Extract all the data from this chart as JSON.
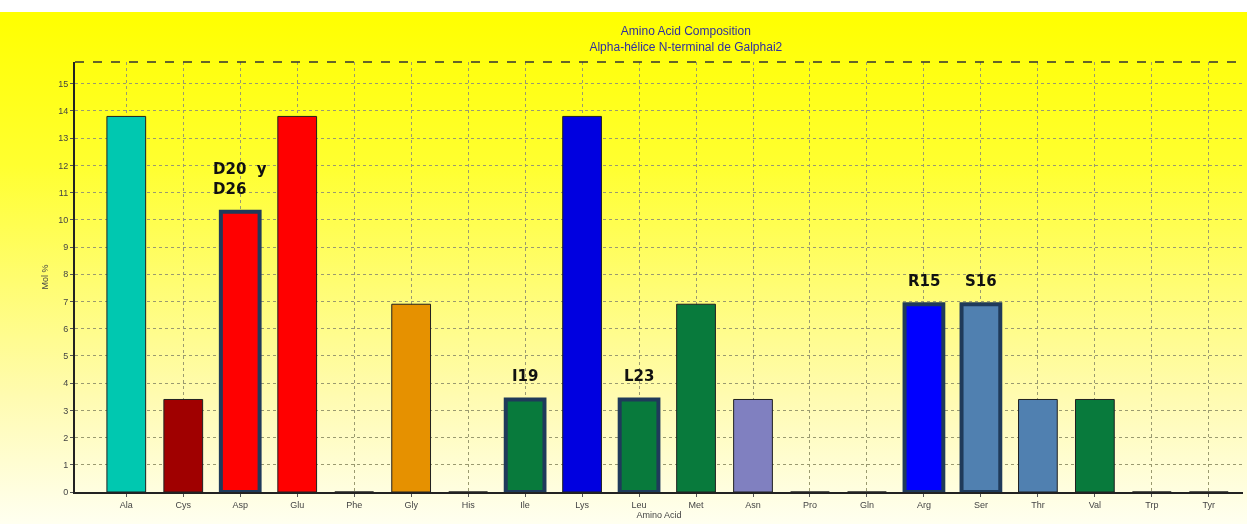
{
  "chart_data": {
    "type": "bar",
    "title": "Amino Acid Composition",
    "subtitle": "Alpha-hélice N-terminal de Galphai2",
    "xlabel": "Amino Acid",
    "ylabel": "Mol %",
    "categories": [
      "Ala",
      "Cys",
      "Asp",
      "Glu",
      "Phe",
      "Gly",
      "His",
      "Ile",
      "Lys",
      "Leu",
      "Met",
      "Asn",
      "Pro",
      "Gln",
      "Arg",
      "Ser",
      "Thr",
      "Val",
      "Trp",
      "Tyr"
    ],
    "values": [
      13.8,
      3.4,
      10.3,
      13.8,
      0,
      6.9,
      0,
      3.4,
      13.8,
      3.4,
      6.9,
      3.4,
      0,
      0,
      6.9,
      6.9,
      3.4,
      3.4,
      0,
      0
    ],
    "colors": [
      "#00c8b0",
      "#a00000",
      "#ff0000",
      "#ff0000",
      "#202020",
      "#e69100",
      "#202020",
      "#087a3c",
      "#0000e0",
      "#087a3c",
      "#087a3c",
      "#8080c0",
      "#202020",
      "#202020",
      "#0000ff",
      "#5080b0",
      "#5080b0",
      "#087a3c",
      "#202020",
      "#202020"
    ],
    "ylim": [
      0,
      15.8
    ],
    "yticks": [
      0,
      1,
      2,
      3,
      4,
      5,
      6,
      7,
      8,
      9,
      10,
      11,
      12,
      13,
      14,
      15
    ],
    "grid": true,
    "annotations": [
      {
        "text": "D20  y\nD26",
        "x": "Asp",
        "y": 10.3
      },
      {
        "text": "I19",
        "x": "Ile",
        "y": 3.4
      },
      {
        "text": "L23",
        "x": "Leu",
        "y": 3.4
      },
      {
        "text": "R15",
        "x": "Arg",
        "y": 6.9
      },
      {
        "text": "S16",
        "x": "Ser",
        "y": 6.9
      }
    ]
  }
}
